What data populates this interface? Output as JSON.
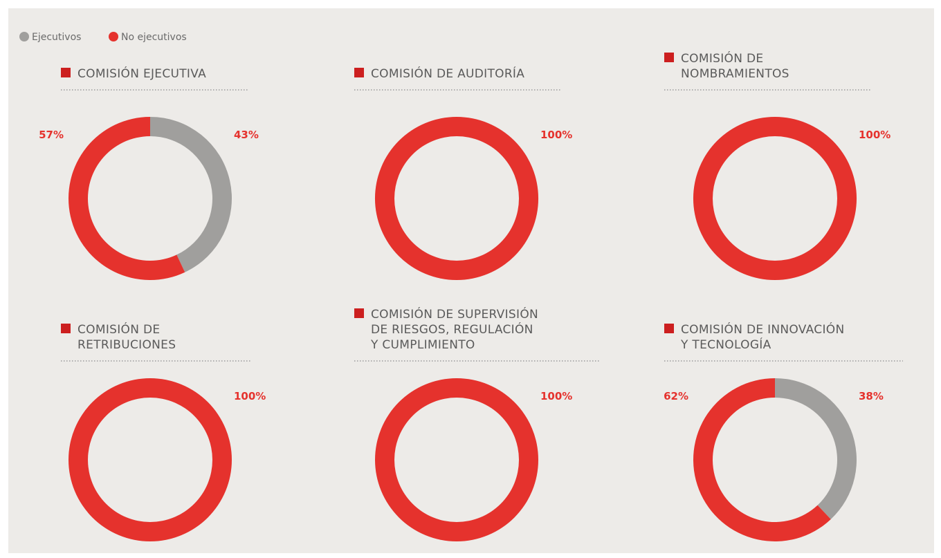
{
  "chart_data": [
    {
      "type": "donut",
      "title": [
        "COMISIÓN EJECUTIVA"
      ],
      "categories": [
        "Ejecutivos",
        "No ejecutivos"
      ],
      "values": [
        43,
        57
      ],
      "value_labels": [
        "43%",
        "57%"
      ],
      "colors": [
        "#a09f9d",
        "#e5322d"
      ]
    },
    {
      "type": "donut",
      "title": [
        "COMISIÓN DE AUDITORÍA"
      ],
      "categories": [
        "Ejecutivos",
        "No ejecutivos"
      ],
      "values": [
        0,
        100
      ],
      "value_labels": [
        null,
        "100%"
      ],
      "colors": [
        "#a09f9d",
        "#e5322d"
      ]
    },
    {
      "type": "donut",
      "title": [
        "COMISIÓN DE",
        "NOMBRAMIENTOS"
      ],
      "categories": [
        "Ejecutivos",
        "No ejecutivos"
      ],
      "values": [
        0,
        100
      ],
      "value_labels": [
        null,
        "100%"
      ],
      "colors": [
        "#a09f9d",
        "#e5322d"
      ]
    },
    {
      "type": "donut",
      "title": [
        "COMISIÓN DE",
        "RETRIBUCIONES"
      ],
      "categories": [
        "Ejecutivos",
        "No ejecutivos"
      ],
      "values": [
        0,
        100
      ],
      "value_labels": [
        null,
        "100%"
      ],
      "colors": [
        "#a09f9d",
        "#e5322d"
      ]
    },
    {
      "type": "donut",
      "title": [
        "COMISIÓN DE SUPERVISIÓN",
        "DE RIESGOS, REGULACIÓN",
        "Y CUMPLIMIENTO"
      ],
      "categories": [
        "Ejecutivos",
        "No ejecutivos"
      ],
      "values": [
        0,
        100
      ],
      "value_labels": [
        null,
        "100%"
      ],
      "colors": [
        "#a09f9d",
        "#e5322d"
      ]
    },
    {
      "type": "donut",
      "title": [
        "COMISIÓN DE INNOVACIÓN",
        "Y TECNOLOGÍA"
      ],
      "categories": [
        "Ejecutivos",
        "No ejecutivos"
      ],
      "values": [
        38,
        62
      ],
      "value_labels": [
        "38%",
        "62%"
      ],
      "colors": [
        "#a09f9d",
        "#e5322d"
      ]
    }
  ]
}
